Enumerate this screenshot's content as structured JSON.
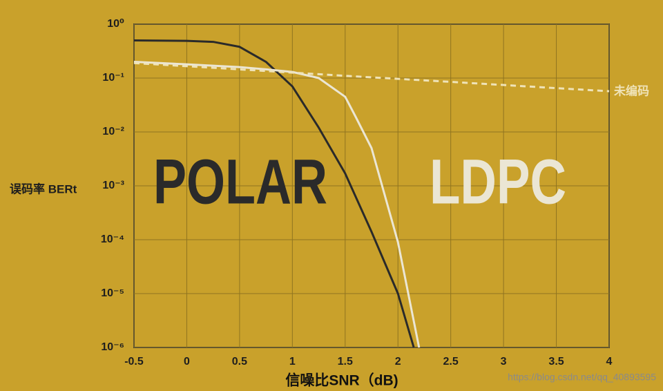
{
  "chart_data": {
    "type": "line",
    "y_label": "误码率 BERt",
    "x_label": "信噪比SNR（dB)",
    "watermark": "https://blog.csdn.net/qq_40893595",
    "log_y": true,
    "grid": true,
    "xlim": [
      -0.5,
      4
    ],
    "ylim": [
      1e-06,
      1
    ],
    "xticks": [
      -0.5,
      0,
      0.5,
      1,
      1.5,
      2,
      2.5,
      3,
      3.5,
      4
    ],
    "yticks": [
      {
        "value": 1,
        "label": "10⁰"
      },
      {
        "value": 0.1,
        "label": "10⁻¹"
      },
      {
        "value": 0.01,
        "label": "10⁻²"
      },
      {
        "value": 0.001,
        "label": "10⁻³"
      },
      {
        "value": 0.0001,
        "label": "10⁻⁴"
      },
      {
        "value": 1e-05,
        "label": "10⁻⁵"
      },
      {
        "value": 1e-06,
        "label": "10⁻⁶"
      }
    ],
    "series": [
      {
        "name": "POLAR",
        "color": "#2a2a2a",
        "dashed": false,
        "x": [
          -0.5,
          0,
          0.25,
          0.5,
          0.75,
          1,
          1.25,
          1.5,
          1.75,
          2,
          2.15
        ],
        "values": [
          0.5,
          0.49,
          0.47,
          0.38,
          0.2,
          0.07,
          0.012,
          0.0017,
          0.00014,
          1e-05,
          1e-06
        ]
      },
      {
        "name": "LDPC",
        "color": "#ebe6d4",
        "dashed": false,
        "x": [
          -0.5,
          0,
          0.5,
          0.75,
          1,
          1.25,
          1.5,
          1.6,
          1.75,
          2,
          2.2
        ],
        "values": [
          0.2,
          0.18,
          0.16,
          0.145,
          0.13,
          0.1,
          0.045,
          0.019,
          0.005,
          9e-05,
          1e-06
        ]
      },
      {
        "name": "未编码",
        "color": "#efe3b8",
        "dashed": true,
        "x": [
          -0.5,
          0.5,
          1.5,
          2.5,
          3.5,
          4
        ],
        "values": [
          0.19,
          0.145,
          0.11,
          0.085,
          0.065,
          0.057
        ]
      }
    ]
  }
}
